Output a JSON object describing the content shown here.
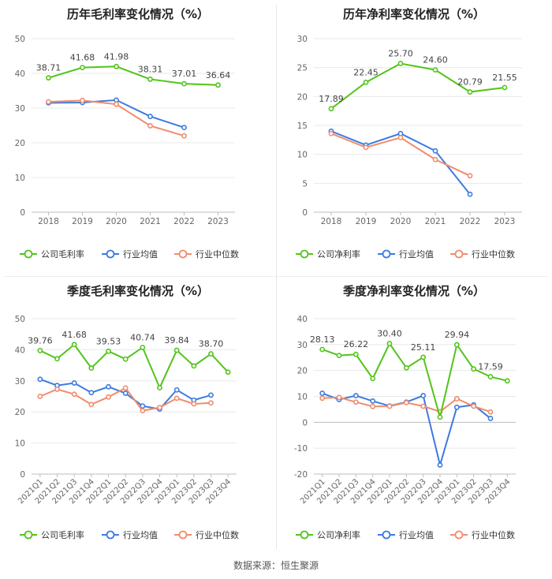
{
  "source": "数据来源：恒生聚源",
  "colors": {
    "company": "#52c41a",
    "industry_avg": "#3d7be0",
    "industry_median": "#f08c6c",
    "grid": "#e8e8e8",
    "axis_text": "#666666",
    "label": "#444444"
  },
  "chart_data": [
    {
      "type": "line",
      "title": "历年毛利率变化情况（%）",
      "categories": [
        "2018",
        "2019",
        "2020",
        "2021",
        "2022",
        "2023"
      ],
      "ylim": [
        0,
        50
      ],
      "yticks": [
        0,
        10,
        20,
        30,
        40,
        50
      ],
      "xlabel": "",
      "ylabel": "",
      "legend": "bottom-center",
      "series": [
        {
          "name": "公司毛利率",
          "color_key": "company",
          "values": [
            38.71,
            41.68,
            41.98,
            38.31,
            37.01,
            36.64
          ],
          "labels": [
            "38.71",
            "41.68",
            "41.98",
            "38.31",
            "37.01",
            "36.64"
          ]
        },
        {
          "name": "行业均值",
          "color_key": "industry_avg",
          "values": [
            31.5,
            31.6,
            32.3,
            27.6,
            24.4,
            null
          ]
        },
        {
          "name": "行业中位数",
          "color_key": "industry_median",
          "values": [
            31.8,
            32.2,
            31.1,
            24.9,
            22.0,
            null
          ]
        }
      ]
    },
    {
      "type": "line",
      "title": "历年净利率变化情况（%）",
      "categories": [
        "2018",
        "2019",
        "2020",
        "2021",
        "2022",
        "2023"
      ],
      "ylim": [
        0,
        30
      ],
      "yticks": [
        0,
        5,
        10,
        15,
        20,
        25,
        30
      ],
      "xlabel": "",
      "ylabel": "",
      "legend": "bottom-center",
      "series": [
        {
          "name": "公司净利率",
          "color_key": "company",
          "values": [
            17.89,
            22.45,
            25.7,
            24.6,
            20.79,
            21.55
          ],
          "labels": [
            "17.89",
            "22.45",
            "25.70",
            "24.60",
            "20.79",
            "21.55"
          ]
        },
        {
          "name": "行业均值",
          "color_key": "industry_avg",
          "values": [
            14.0,
            11.6,
            13.6,
            10.6,
            3.1,
            null
          ]
        },
        {
          "name": "行业中位数",
          "color_key": "industry_median",
          "values": [
            13.6,
            11.2,
            12.9,
            9.1,
            6.3,
            null
          ]
        }
      ]
    },
    {
      "type": "line",
      "title": "季度毛利率变化情况（%）",
      "categories": [
        "2021Q1",
        "2021Q2",
        "2021Q3",
        "2021Q4",
        "2022Q1",
        "2022Q2",
        "2022Q3",
        "2022Q4",
        "2023Q1",
        "2023Q2",
        "2023Q3",
        "2023Q4"
      ],
      "ylim": [
        0,
        50
      ],
      "yticks": [
        0,
        10,
        20,
        30,
        40,
        50
      ],
      "xlabel": "",
      "ylabel": "",
      "legend": "bottom-center",
      "series": [
        {
          "name": "公司毛利率",
          "color_key": "company",
          "values": [
            39.76,
            37.1,
            41.68,
            34.1,
            39.53,
            37.0,
            40.74,
            27.8,
            39.84,
            34.8,
            38.7,
            32.8
          ],
          "labels": [
            "39.76",
            "",
            "41.68",
            "",
            "39.53",
            "",
            "40.74",
            "",
            "39.84",
            "",
            "38.70",
            ""
          ]
        },
        {
          "name": "行业均值",
          "color_key": "industry_avg",
          "values": [
            30.5,
            28.5,
            29.3,
            26.2,
            28.1,
            26.0,
            21.9,
            20.9,
            27.1,
            23.8,
            25.4,
            null
          ]
        },
        {
          "name": "行业中位数",
          "color_key": "industry_median",
          "values": [
            25.0,
            27.3,
            25.7,
            22.4,
            24.8,
            27.7,
            20.4,
            21.4,
            24.4,
            22.6,
            22.9,
            null
          ]
        }
      ]
    },
    {
      "type": "line",
      "title": "季度净利率变化情况（%）",
      "categories": [
        "2021Q1",
        "2021Q2",
        "2021Q3",
        "2021Q4",
        "2022Q1",
        "2022Q2",
        "2022Q3",
        "2022Q4",
        "2023Q1",
        "2023Q2",
        "2023Q3",
        "2023Q4"
      ],
      "ylim": [
        -20,
        40
      ],
      "yticks": [
        -20,
        -10,
        0,
        10,
        20,
        30,
        40
      ],
      "xlabel": "",
      "ylabel": "",
      "legend": "bottom-center",
      "series": [
        {
          "name": "公司净利率",
          "color_key": "company",
          "values": [
            28.13,
            25.8,
            26.22,
            16.9,
            30.4,
            21.0,
            25.11,
            2.0,
            29.94,
            20.6,
            17.59,
            16.0
          ],
          "labels": [
            "28.13",
            "",
            "26.22",
            "",
            "30.40",
            "",
            "25.11",
            "",
            "29.94",
            "",
            "17.59",
            ""
          ]
        },
        {
          "name": "行业均值",
          "color_key": "industry_avg",
          "values": [
            11.2,
            8.8,
            10.3,
            8.2,
            6.3,
            7.8,
            10.3,
            -16.5,
            5.8,
            6.7,
            1.5,
            null
          ]
        },
        {
          "name": "行业中位数",
          "color_key": "industry_median",
          "values": [
            9.3,
            9.6,
            7.8,
            6.1,
            6.2,
            7.6,
            6.2,
            4.1,
            9.1,
            6.2,
            4.0,
            null
          ]
        }
      ]
    }
  ]
}
